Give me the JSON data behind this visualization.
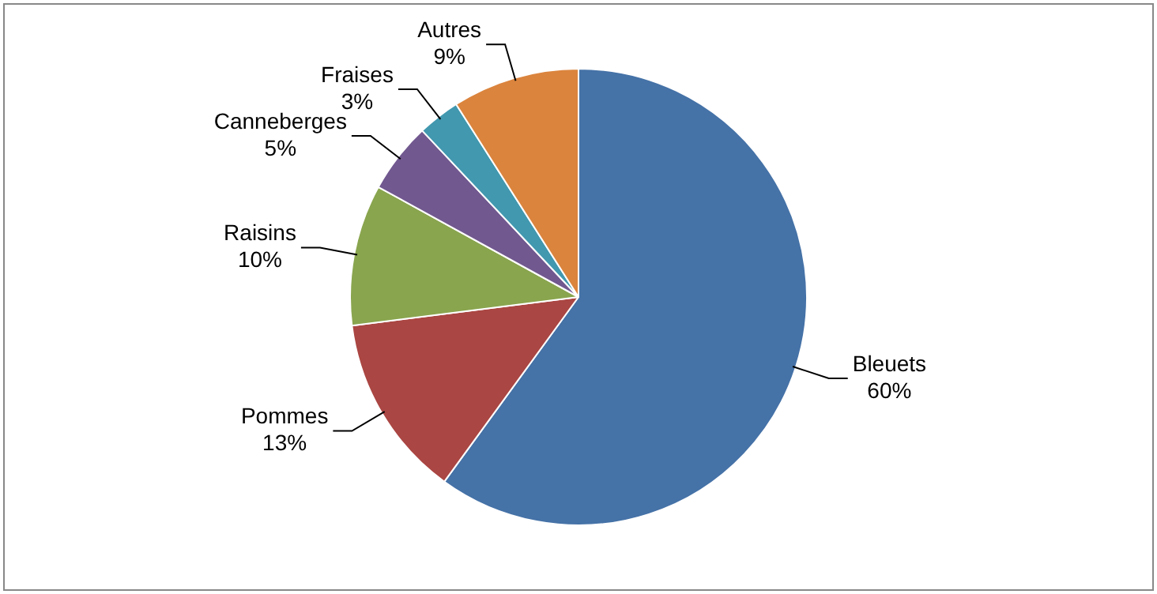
{
  "chart_data": {
    "type": "pie",
    "categories": [
      "Bleuets",
      "Pommes",
      "Raisins",
      "Canneberges",
      "Fraises",
      "Autres"
    ],
    "values": [
      60,
      13,
      10,
      5,
      3,
      9
    ],
    "value_labels": [
      "60%",
      "13%",
      "10%",
      "5%",
      "3%",
      "9%"
    ],
    "colors": [
      "#4572a7",
      "#aa4643",
      "#89a54e",
      "#71588f",
      "#4198af",
      "#db843d"
    ],
    "legend": false
  }
}
